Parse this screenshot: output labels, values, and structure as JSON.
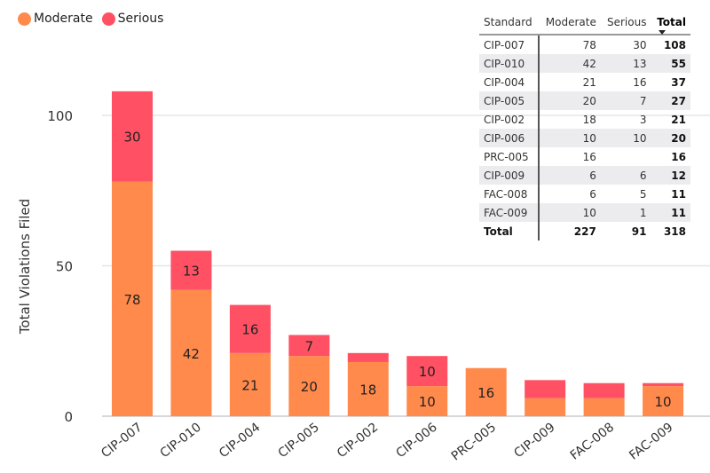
{
  "legend": [
    {
      "name": "Moderate",
      "color": "#FF8A4C"
    },
    {
      "name": "Serious",
      "color": "#FF5064"
    }
  ],
  "chart_data": {
    "type": "bar",
    "stacked": true,
    "categories": [
      "CIP-007",
      "CIP-010",
      "CIP-004",
      "CIP-005",
      "CIP-002",
      "CIP-006",
      "PRC-005",
      "CIP-009",
      "FAC-008",
      "FAC-009"
    ],
    "series": [
      {
        "name": "Moderate",
        "color": "#FF8A4C",
        "values": [
          78,
          42,
          21,
          20,
          18,
          10,
          16,
          6,
          6,
          10
        ]
      },
      {
        "name": "Serious",
        "color": "#FF5064",
        "values": [
          30,
          13,
          16,
          7,
          3,
          10,
          0,
          6,
          5,
          1
        ]
      }
    ],
    "ylabel": "Total Violations Filed",
    "xlabel": "",
    "ylim": [
      0,
      100
    ],
    "yticks": [
      "0",
      "50",
      "100"
    ],
    "grid": true,
    "legend": "top-left"
  },
  "table": {
    "headers": [
      "Standard",
      "Moderate",
      "Serious",
      "Total"
    ],
    "rows": [
      [
        "CIP-007",
        "78",
        "30",
        "108"
      ],
      [
        "CIP-010",
        "42",
        "13",
        "55"
      ],
      [
        "CIP-004",
        "21",
        "16",
        "37"
      ],
      [
        "CIP-005",
        "20",
        "7",
        "27"
      ],
      [
        "CIP-002",
        "18",
        "3",
        "21"
      ],
      [
        "CIP-006",
        "10",
        "10",
        "20"
      ],
      [
        "PRC-005",
        "16",
        "",
        "16"
      ],
      [
        "CIP-009",
        "6",
        "6",
        "12"
      ],
      [
        "FAC-008",
        "6",
        "5",
        "11"
      ],
      [
        "FAC-009",
        "10",
        "1",
        "11"
      ]
    ],
    "total": [
      "Total",
      "227",
      "91",
      "318"
    ]
  }
}
